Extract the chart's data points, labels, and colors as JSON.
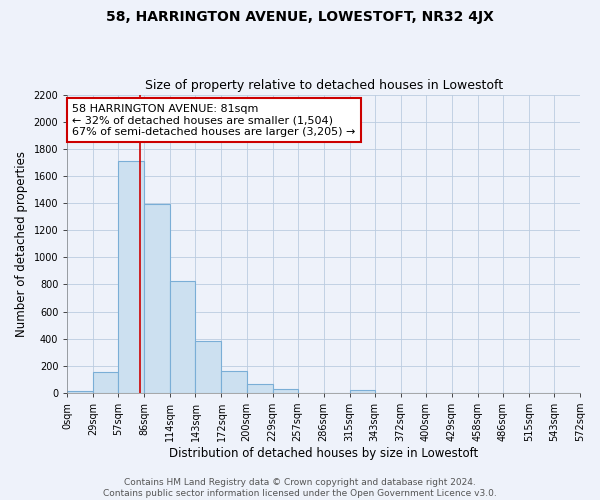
{
  "title": "58, HARRINGTON AVENUE, LOWESTOFT, NR32 4JX",
  "subtitle": "Size of property relative to detached houses in Lowestoft",
  "xlabel": "Distribution of detached houses by size in Lowestoft",
  "ylabel": "Number of detached properties",
  "bar_edges": [
    0,
    29,
    57,
    86,
    114,
    143,
    172,
    200,
    229,
    257,
    286,
    315,
    343,
    372,
    400,
    429,
    458,
    486,
    515,
    543,
    572
  ],
  "bar_heights": [
    15,
    155,
    1710,
    1390,
    825,
    385,
    160,
    65,
    30,
    0,
    0,
    25,
    0,
    0,
    0,
    0,
    0,
    0,
    0,
    0
  ],
  "bar_color": "#cce0f0",
  "bar_edge_color": "#7aaed6",
  "property_line_x": 81,
  "property_line_color": "#cc0000",
  "annotation_line1": "58 HARRINGTON AVENUE: 81sqm",
  "annotation_line2": "← 32% of detached houses are smaller (1,504)",
  "annotation_line3": "67% of semi-detached houses are larger (3,205) →",
  "annotation_box_color": "#ffffff",
  "annotation_box_edge_color": "#cc0000",
  "ylim": [
    0,
    2200
  ],
  "yticks": [
    0,
    200,
    400,
    600,
    800,
    1000,
    1200,
    1400,
    1600,
    1800,
    2000,
    2200
  ],
  "xtick_labels": [
    "0sqm",
    "29sqm",
    "57sqm",
    "86sqm",
    "114sqm",
    "143sqm",
    "172sqm",
    "200sqm",
    "229sqm",
    "257sqm",
    "286sqm",
    "315sqm",
    "343sqm",
    "372sqm",
    "400sqm",
    "429sqm",
    "458sqm",
    "486sqm",
    "515sqm",
    "543sqm",
    "572sqm"
  ],
  "grid_color": "#bbcce0",
  "background_color": "#eef2fa",
  "footer_text": "Contains HM Land Registry data © Crown copyright and database right 2024.\nContains public sector information licensed under the Open Government Licence v3.0.",
  "title_fontsize": 10,
  "subtitle_fontsize": 9,
  "xlabel_fontsize": 8.5,
  "ylabel_fontsize": 8.5,
  "tick_fontsize": 7,
  "annotation_fontsize": 8,
  "footer_fontsize": 6.5
}
